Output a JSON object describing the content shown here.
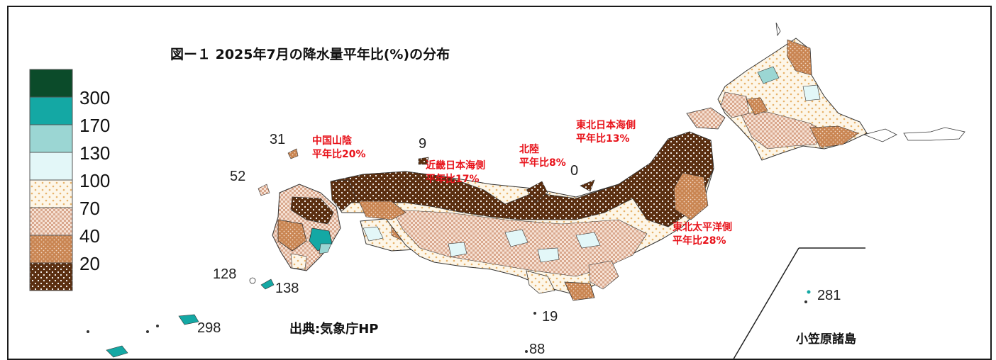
{
  "title": "図ー１ 2025年7月の降水量平年比(%)の分布",
  "source": "出典:気象庁HP",
  "colors": {
    "c300": "#0b4b2a",
    "c170": "#14a8a4",
    "c130": "#9bd6d3",
    "c100": "#e3f7f8",
    "c70": "#fbf0da",
    "c40": "#f0d3c2",
    "c20": "#c98552",
    "c0": "#5a2e10",
    "accent_text": "#e8121a"
  },
  "legend": {
    "labels": [
      "300",
      "170",
      "130",
      "100",
      "70",
      "40",
      "20"
    ]
  },
  "station_values": {
    "v31": "31",
    "v52": "52",
    "v9": "9",
    "v0": "0",
    "v128": "128",
    "v138": "138",
    "v298": "298",
    "v19": "19",
    "v88": "88",
    "v281": "281"
  },
  "regions": {
    "chugoku_sanin": {
      "name": "中国山陰",
      "ratio": "平年比20%"
    },
    "kinki_nihonkai": {
      "name": "近畿日本海側",
      "ratio": "平年比17%"
    },
    "hokuriku": {
      "name": "北陸",
      "ratio": "平年比8%"
    },
    "tohoku_nihonkai": {
      "name": "東北日本海側",
      "ratio": "平年比13%"
    },
    "tohoku_taiheiyo": {
      "name": "東北太平洋側",
      "ratio": "平年比28%"
    }
  },
  "inset_label": "小笠原諸島"
}
